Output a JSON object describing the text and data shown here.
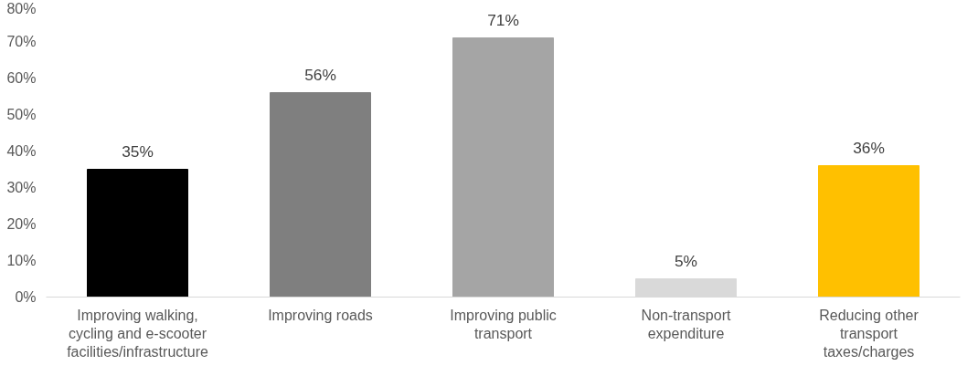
{
  "chart_data": {
    "type": "bar",
    "categories": [
      "Improving walking, cycling and e-scooter facilities/infrastructure",
      "Improving roads",
      "Improving public transport",
      "Non-transport expenditure",
      "Reducing other transport taxes/charges"
    ],
    "values": [
      35,
      56,
      71,
      5,
      36
    ],
    "colors": [
      "#000000",
      "#7f7f7f",
      "#a5a5a5",
      "#d9d9d9",
      "#ffc000"
    ],
    "value_labels": [
      "35%",
      "56%",
      "71%",
      "5%",
      "36%"
    ],
    "ylim": [
      0,
      80
    ],
    "yticks": [
      {
        "value": 0,
        "label": "0%"
      },
      {
        "value": 10,
        "label": "10%"
      },
      {
        "value": 20,
        "label": "20%"
      },
      {
        "value": 30,
        "label": "30%"
      },
      {
        "value": 40,
        "label": "40%"
      },
      {
        "value": 50,
        "label": "50%"
      },
      {
        "value": 60,
        "label": "60%"
      },
      {
        "value": 70,
        "label": "70%"
      },
      {
        "value": 80,
        "label": "80%"
      }
    ],
    "grid": false
  }
}
